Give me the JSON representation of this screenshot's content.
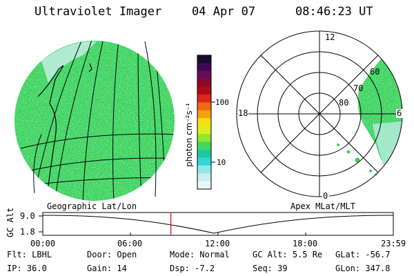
{
  "header": {
    "instrument": "Ultraviolet Imager",
    "date": "04 Apr 07",
    "time": "08:46:23 UT"
  },
  "colorbar": {
    "label": "photon cm⁻²s⁻¹",
    "ticks": [
      "100",
      "10"
    ],
    "colors": [
      "#1a0a2e",
      "#3a0a55",
      "#6a0a5a",
      "#8a0a2a",
      "#b00a1a",
      "#e0261a",
      "#f06a10",
      "#f8a010",
      "#f8e010",
      "#d8f020",
      "#90e830",
      "#40d860",
      "#20c8a0",
      "#30d8d8",
      "#90e8e8",
      "#c8f0f0",
      "#e8f8f8"
    ]
  },
  "left_panel": {
    "caption": "Geographic Lat/Lon",
    "fill_color": "#3cd25a"
  },
  "right_panel": {
    "caption": "Apex MLat/MLT",
    "mlt_labels": {
      "top": "12",
      "left": "18",
      "right": "6",
      "bottom": "0"
    },
    "lat_labels": [
      "60",
      "70",
      "80"
    ]
  },
  "timeline": {
    "axis_label": "GC Alt",
    "y_ticks": [
      "9.0",
      "1.8"
    ],
    "x_ticks": [
      "00:00",
      "06:00",
      "12:00",
      "18:00",
      "23:59"
    ],
    "current_hour": 8.77,
    "marker_color": "#e00000"
  },
  "info": {
    "row1": [
      {
        "label": "Flt:",
        "value": "LBHL"
      },
      {
        "label": "Door:",
        "value": "Open"
      },
      {
        "label": "Mode:",
        "value": "Normal"
      },
      {
        "label": "GC Alt:",
        "value": "5.5 Re"
      },
      {
        "label": "GLat:",
        "value": "-56.7"
      }
    ],
    "row2": [
      {
        "label": "IP:",
        "value": "36.0"
      },
      {
        "label": "Gain:",
        "value": "14"
      },
      {
        "label": "Dsp:",
        "value": "-7.2"
      },
      {
        "label": "Seq:",
        "value": "39"
      },
      {
        "label": "GLon:",
        "value": "347.8"
      }
    ]
  }
}
